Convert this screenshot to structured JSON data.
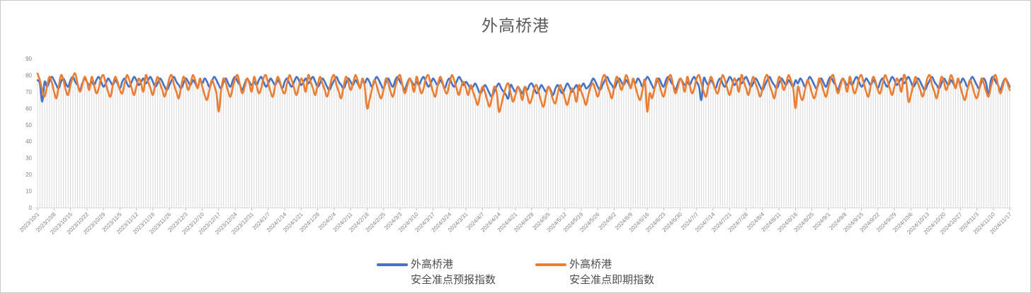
{
  "window": {
    "background": "#FFFFFF",
    "border_color": "#C9C9C9"
  },
  "chart": {
    "title": "外高桥港",
    "title_color": "#595959",
    "legend": [
      {
        "name_line1": "外高桥港",
        "name_line2": "安全准点预报指数",
        "color": "#4472C4"
      },
      {
        "name_line1": "外高桥港",
        "name_line2": "安全准点即期指数",
        "color": "#ED7D31"
      }
    ]
  },
  "chart_data": {
    "type": "line",
    "title": "外高桥港",
    "xlabel": "",
    "ylabel": "",
    "ylim": [
      0,
      90
    ],
    "y_ticks": [
      0,
      10,
      20,
      30,
      40,
      50,
      60,
      70,
      80,
      90
    ],
    "x_unit": "day",
    "x_start": "2023/10/1",
    "x_end": "2024/11/17",
    "x_tick_interval_days": 7,
    "grid": "vertical-drop-lines",
    "legend_position": "bottom",
    "axis_color": "#D9D9D9",
    "drop_line_color": "#D9D9D9",
    "label_color": "#808080",
    "x_tick_labels": [
      "2023/10/1",
      "2023/10/8",
      "2023/10/15",
      "2023/10/22",
      "2023/10/29",
      "2023/11/5",
      "2023/11/12",
      "2023/11/19",
      "2023/11/26",
      "2023/12/3",
      "2023/12/10",
      "2023/12/17",
      "2023/12/24",
      "2023/12/31",
      "2024/1/7",
      "2024/1/14",
      "2024/1/21",
      "2024/1/28",
      "2024/2/4",
      "2024/2/11",
      "2024/2/18",
      "2024/2/25",
      "2024/3/3",
      "2024/3/10",
      "2024/3/17",
      "2024/3/24",
      "2024/3/31",
      "2024/4/7",
      "2024/4/14",
      "2024/4/21",
      "2024/4/28",
      "2024/5/5",
      "2024/5/12",
      "2024/5/19",
      "2024/5/26",
      "2024/6/2",
      "2024/6/9",
      "2024/6/16",
      "2024/6/23",
      "2024/6/30",
      "2024/7/7",
      "2024/7/14",
      "2024/7/21",
      "2024/7/28",
      "2024/8/4",
      "2024/8/11",
      "2024/8/18",
      "2024/8/25",
      "2024/9/1",
      "2024/9/8",
      "2024/9/15",
      "2024/9/22",
      "2024/9/29",
      "2024/10/6",
      "2024/10/13",
      "2024/10/20",
      "2024/10/27",
      "2024/11/3",
      "2024/11/10",
      "2024/11/17"
    ],
    "series": [
      {
        "name": "外高桥港 安全准点预报指数",
        "color": "#4472C4",
        "values": [
          77,
          75,
          64,
          76,
          73,
          76,
          79,
          77,
          74,
          72,
          76,
          78,
          75,
          73,
          77,
          79,
          76,
          74,
          71,
          75,
          78,
          76,
          74,
          76,
          74,
          77,
          79,
          76,
          73,
          75,
          78,
          76,
          74,
          77,
          75,
          72,
          76,
          78,
          75,
          73,
          76,
          79,
          77,
          74,
          76,
          78,
          75,
          77,
          79,
          76,
          73,
          75,
          78,
          76,
          73,
          71,
          74,
          77,
          79,
          76,
          74,
          72,
          75,
          78,
          76,
          74,
          77,
          75,
          73,
          77,
          75,
          78,
          76,
          73,
          76,
          79,
          77,
          74,
          72,
          76,
          78,
          75,
          73,
          77,
          79,
          76,
          74,
          71,
          75,
          78,
          76,
          74,
          76,
          74,
          77,
          79,
          76,
          73,
          75,
          78,
          76,
          74,
          77,
          75,
          72,
          76,
          78,
          75,
          73,
          76,
          79,
          77,
          74,
          76,
          78,
          75,
          77,
          79,
          76,
          73,
          75,
          78,
          76,
          73,
          71,
          74,
          77,
          79,
          76,
          74,
          72,
          75,
          78,
          76,
          74,
          77,
          75,
          73,
          77,
          75,
          78,
          76,
          73,
          76,
          79,
          77,
          74,
          72,
          76,
          78,
          75,
          73,
          77,
          79,
          76,
          74,
          71,
          75,
          78,
          76,
          74,
          76,
          74,
          77,
          79,
          76,
          73,
          75,
          78,
          76,
          74,
          77,
          75,
          72,
          76,
          78,
          75,
          73,
          76,
          79,
          77,
          74,
          76,
          74,
          72,
          73,
          75,
          72,
          69,
          71,
          74,
          72,
          69,
          67,
          70,
          73,
          75,
          72,
          70,
          68,
          66,
          74,
          72,
          70,
          73,
          71,
          69,
          73,
          71,
          74,
          75,
          72,
          69,
          71,
          74,
          72,
          70,
          73,
          71,
          68,
          72,
          74,
          71,
          69,
          72,
          75,
          73,
          70,
          72,
          74,
          71,
          73,
          75,
          72,
          73,
          75,
          78,
          76,
          73,
          71,
          74,
          77,
          79,
          76,
          74,
          72,
          75,
          78,
          76,
          74,
          77,
          75,
          73,
          77,
          75,
          78,
          76,
          73,
          76,
          79,
          77,
          74,
          72,
          76,
          78,
          75,
          73,
          77,
          79,
          76,
          74,
          71,
          75,
          78,
          76,
          74,
          76,
          74,
          77,
          79,
          76,
          73,
          65,
          78,
          76,
          74,
          77,
          75,
          72,
          76,
          78,
          75,
          73,
          76,
          79,
          77,
          74,
          76,
          78,
          75,
          77,
          79,
          76,
          73,
          75,
          78,
          76,
          73,
          71,
          74,
          77,
          79,
          76,
          74,
          72,
          75,
          78,
          76,
          74,
          77,
          75,
          73,
          77,
          75,
          78,
          76,
          73,
          76,
          79,
          77,
          74,
          72,
          76,
          78,
          75,
          73,
          77,
          79,
          76,
          74,
          71,
          75,
          78,
          76,
          74,
          76,
          74,
          77,
          79,
          76,
          73,
          75,
          78,
          76,
          74,
          77,
          75,
          72,
          76,
          78,
          75,
          73,
          76,
          79,
          77,
          74,
          76,
          78,
          75,
          77,
          79,
          76,
          73,
          75,
          78,
          76,
          73,
          71,
          74,
          77,
          79,
          76,
          74,
          72,
          75,
          78,
          76,
          74,
          77,
          75,
          73,
          77,
          75,
          78,
          76,
          73,
          76,
          79,
          77,
          74,
          72,
          76,
          78,
          75,
          68,
          77,
          79,
          76,
          74,
          71,
          75,
          78,
          76,
          73
        ]
      },
      {
        "name": "外高桥港 安全准点即期指数",
        "color": "#ED7D31",
        "values": [
          81,
          77,
          71,
          67,
          73,
          79,
          76,
          70,
          66,
          73,
          80,
          77,
          71,
          68,
          74,
          79,
          81,
          75,
          70,
          74,
          79,
          76,
          71,
          79,
          74,
          69,
          72,
          78,
          80,
          75,
          70,
          67,
          74,
          79,
          76,
          71,
          69,
          75,
          80,
          77,
          72,
          68,
          73,
          78,
          75,
          70,
          80,
          76,
          72,
          68,
          74,
          79,
          75,
          71,
          67,
          72,
          78,
          80,
          74,
          70,
          66,
          73,
          79,
          76,
          71,
          75,
          80,
          77,
          72,
          78,
          73,
          68,
          65,
          71,
          77,
          74,
          69,
          58,
          71,
          78,
          75,
          70,
          67,
          73,
          78,
          80,
          74,
          69,
          73,
          78,
          75,
          70,
          79,
          74,
          69,
          72,
          78,
          80,
          75,
          70,
          67,
          74,
          79,
          76,
          71,
          69,
          75,
          80,
          77,
          72,
          68,
          73,
          78,
          75,
          70,
          80,
          76,
          72,
          68,
          74,
          79,
          75,
          71,
          67,
          72,
          78,
          80,
          74,
          70,
          66,
          73,
          79,
          76,
          71,
          75,
          80,
          77,
          72,
          78,
          73,
          60,
          65,
          71,
          77,
          74,
          69,
          66,
          71,
          78,
          75,
          70,
          67,
          73,
          78,
          80,
          74,
          69,
          73,
          78,
          75,
          70,
          79,
          74,
          69,
          72,
          78,
          80,
          75,
          70,
          67,
          74,
          79,
          76,
          71,
          69,
          75,
          80,
          77,
          72,
          68,
          73,
          76,
          72,
          68,
          74,
          70,
          66,
          62,
          68,
          73,
          70,
          65,
          61,
          66,
          73,
          70,
          58,
          62,
          68,
          73,
          75,
          69,
          64,
          68,
          73,
          70,
          65,
          73,
          68,
          63,
          66,
          72,
          74,
          69,
          64,
          61,
          68,
          73,
          70,
          65,
          63,
          69,
          74,
          71,
          66,
          62,
          67,
          72,
          69,
          64,
          74,
          70,
          66,
          62,
          68,
          73,
          75,
          71,
          67,
          72,
          78,
          80,
          74,
          70,
          66,
          73,
          79,
          76,
          71,
          75,
          80,
          77,
          72,
          78,
          73,
          68,
          65,
          71,
          77,
          58,
          69,
          66,
          71,
          78,
          75,
          70,
          67,
          73,
          78,
          80,
          74,
          69,
          73,
          78,
          75,
          70,
          79,
          74,
          69,
          72,
          78,
          80,
          75,
          70,
          67,
          74,
          79,
          76,
          71,
          69,
          75,
          80,
          77,
          72,
          68,
          73,
          78,
          75,
          70,
          80,
          76,
          72,
          68,
          74,
          79,
          75,
          71,
          67,
          72,
          78,
          80,
          74,
          70,
          66,
          73,
          79,
          76,
          71,
          75,
          80,
          77,
          72,
          60,
          73,
          68,
          65,
          71,
          77,
          74,
          69,
          66,
          71,
          78,
          75,
          70,
          67,
          73,
          78,
          80,
          74,
          69,
          73,
          78,
          75,
          70,
          79,
          74,
          69,
          72,
          78,
          80,
          75,
          70,
          67,
          74,
          79,
          76,
          71,
          69,
          75,
          80,
          77,
          72,
          68,
          73,
          78,
          75,
          70,
          80,
          76,
          64,
          68,
          74,
          79,
          75,
          71,
          67,
          72,
          78,
          80,
          74,
          70,
          66,
          73,
          79,
          76,
          71,
          75,
          80,
          77,
          72,
          78,
          73,
          68,
          65,
          71,
          77,
          74,
          69,
          66,
          71,
          78,
          75,
          70,
          67,
          73,
          78,
          80,
          74,
          69,
          73,
          78,
          75,
          71
        ]
      }
    ]
  }
}
